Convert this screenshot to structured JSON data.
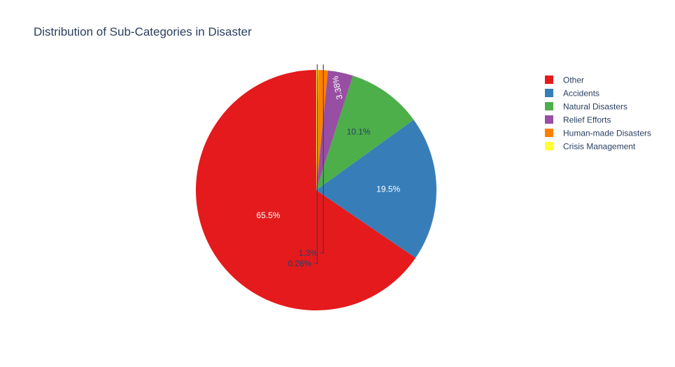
{
  "chart_data": {
    "type": "pie",
    "title": "Distribution of Sub-Categories in Disaster",
    "legend_position": "top-right",
    "slices": [
      {
        "name": "Other",
        "percent": 65.5,
        "label": "65.5%",
        "color": "#e41a1c",
        "label_color": "#ffffff",
        "label_inside": true
      },
      {
        "name": "Accidents",
        "percent": 19.5,
        "label": "19.5%",
        "color": "#377eb8",
        "label_color": "#ffffff",
        "label_inside": true
      },
      {
        "name": "Natural Disasters",
        "percent": 10.1,
        "label": "10.1%",
        "color": "#4daf4a",
        "label_color": "#2a3f5f",
        "label_inside": true
      },
      {
        "name": "Relief Efforts",
        "percent": 3.38,
        "label": "3.38%",
        "color": "#984ea3",
        "label_color": "#ffffff",
        "label_inside": true
      },
      {
        "name": "Human-made Disasters",
        "percent": 1.3,
        "label": "1.3%",
        "color": "#ff7f00",
        "label_color": "#2a3f5f",
        "label_inside": false
      },
      {
        "name": "Crisis Management",
        "percent": 0.26,
        "label": "0.26%",
        "color": "#ffff33",
        "label_color": "#2a3f5f",
        "label_inside": false
      }
    ]
  }
}
